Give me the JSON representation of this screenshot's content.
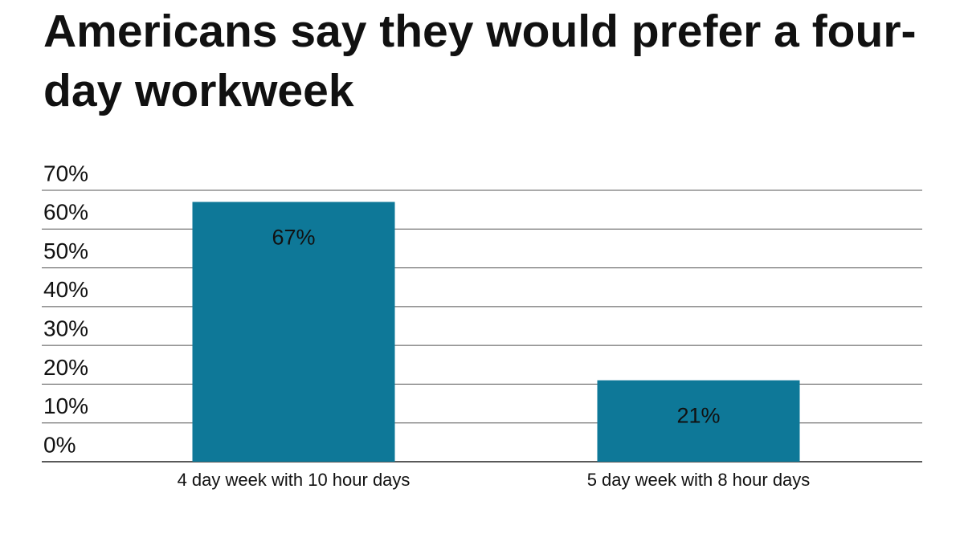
{
  "chart_data": {
    "type": "bar",
    "title": "Americans say they would prefer a four-day workweek",
    "categories": [
      "4 day week with 10 hour days",
      "5 day week with 8 hour days"
    ],
    "values": [
      67,
      21
    ],
    "value_labels": [
      "67%",
      "21%"
    ],
    "color": "#0e7898",
    "ylim": [
      0,
      70
    ],
    "yticks": [
      {
        "value": 0,
        "label": "0%"
      },
      {
        "value": 10,
        "label": "10%"
      },
      {
        "value": 20,
        "label": "20%"
      },
      {
        "value": 30,
        "label": "30%"
      },
      {
        "value": 40,
        "label": "40%"
      },
      {
        "value": 50,
        "label": "50%"
      },
      {
        "value": 60,
        "label": "60%"
      },
      {
        "value": 70,
        "label": "70%"
      }
    ],
    "grid": true
  }
}
